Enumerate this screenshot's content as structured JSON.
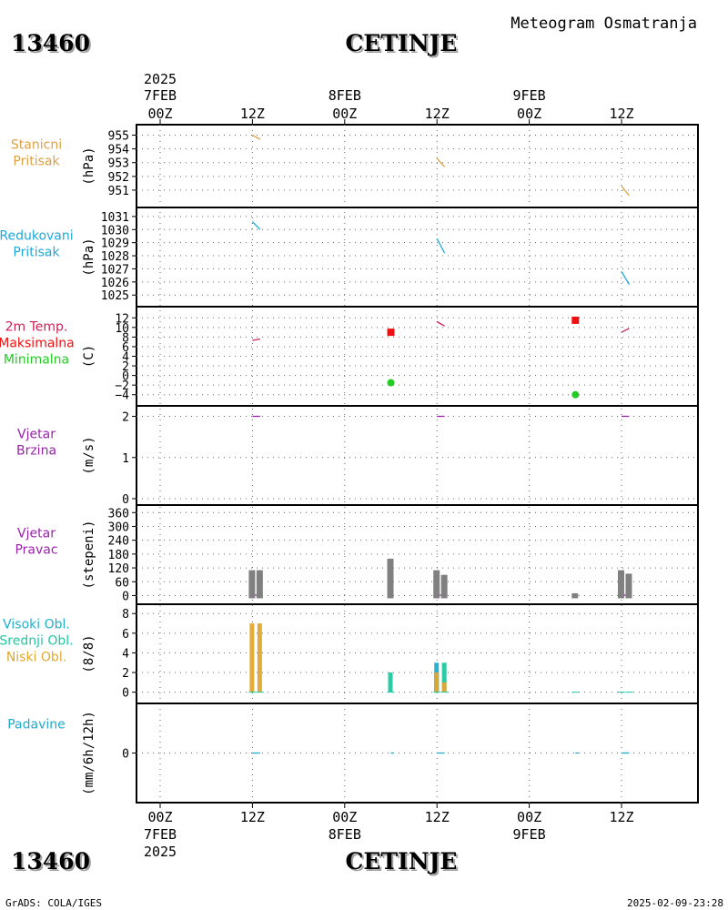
{
  "header": {
    "station_id": "13460",
    "station_name": "CETINJE",
    "product_title": "Meteogram Osmatranja",
    "year": "2025"
  },
  "footer": {
    "credit": "GrADS: COLA/IGES",
    "timestamp": "2025-02-09-23:28"
  },
  "colors": {
    "pressure_station": "#e0a040",
    "pressure_reduced": "#1fa8d8",
    "temperature": "#cc2255",
    "maximum": "#ee1111",
    "minimum": "#22cc22",
    "wind": "#9922aa",
    "direction_bar": "#808080",
    "cloud_high": "#1fb0d0",
    "cloud_mid": "#20c8a0",
    "cloud_low": "#e0a830",
    "precip": "#22aacc"
  },
  "chart_data": {
    "type": "line",
    "time_axis": {
      "start": "2025-02-07T00Z",
      "end": "2025-02-10T00Z",
      "ticks": [
        {
          "hour": 0,
          "label": "00Z",
          "date": "7FEB"
        },
        {
          "hour": 12,
          "label": "12Z",
          "date": ""
        },
        {
          "hour": 24,
          "label": "00Z",
          "date": "8FEB"
        },
        {
          "hour": 36,
          "label": "12Z",
          "date": ""
        },
        {
          "hour": 48,
          "label": "00Z",
          "date": "9FEB"
        },
        {
          "hour": 60,
          "label": "12Z",
          "date": ""
        }
      ]
    },
    "panels": [
      {
        "id": "station_pressure",
        "label_lines": [
          "Stanicni",
          "Pritisak"
        ],
        "unit": "(hPa)",
        "ylim": [
          950.2,
          955.3
        ],
        "yticks": [
          951,
          952,
          953,
          954,
          955
        ],
        "series": [
          {
            "name": "Stanicni Pritisak",
            "color_key": "pressure_station",
            "style": "line",
            "segments": [
              [
                [
                  12.0,
                  955.0
                ],
                [
                  13.0,
                  954.7
                ]
              ],
              [
                [
                  36.0,
                  953.3
                ],
                [
                  37.0,
                  952.7
                ]
              ],
              [
                [
                  60.0,
                  951.3
                ],
                [
                  61.0,
                  950.6
                ]
              ]
            ]
          }
        ]
      },
      {
        "id": "reduced_pressure",
        "label_lines": [
          "Redukovani",
          "Pritisak"
        ],
        "unit": "(hPa)",
        "ylim": [
          1024.6,
          1031.2
        ],
        "yticks": [
          1025,
          1026,
          1027,
          1028,
          1029,
          1030,
          1031
        ],
        "series": [
          {
            "name": "Redukovani Pritisak",
            "color_key": "pressure_reduced",
            "style": "line",
            "segments": [
              [
                [
                  12.0,
                  1030.6
                ],
                [
                  13.0,
                  1030.0
                ]
              ],
              [
                [
                  36.0,
                  1029.3
                ],
                [
                  37.0,
                  1028.2
                ]
              ],
              [
                [
                  60.0,
                  1026.8
                ],
                [
                  61.0,
                  1025.8
                ]
              ]
            ]
          }
        ]
      },
      {
        "id": "temperature",
        "label_lines": [
          "2m Temp.",
          "Maksimalna",
          "Minimalna"
        ],
        "unit": "(C)",
        "ylim": [
          -5,
          13
        ],
        "yticks": [
          -4,
          -2,
          0,
          2,
          4,
          6,
          8,
          10,
          12
        ],
        "series": [
          {
            "name": "2m Temp.",
            "color_key": "temperature",
            "style": "line",
            "segments": [
              [
                [
                  12.0,
                  7.3
                ],
                [
                  13.0,
                  7.6
                ]
              ],
              [
                [
                  36.0,
                  11.2
                ],
                [
                  37.0,
                  10.3
                ]
              ],
              [
                [
                  60.0,
                  9.0
                ],
                [
                  61.0,
                  9.8
                ]
              ]
            ]
          },
          {
            "name": "Maksimalna",
            "color_key": "maximum",
            "style": "square",
            "points": [
              [
                30.0,
                9.0
              ],
              [
                54.0,
                11.5
              ]
            ]
          },
          {
            "name": "Minimalna",
            "color_key": "minimum",
            "style": "dot",
            "points": [
              [
                30.0,
                -1.5
              ],
              [
                54.0,
                -4.0
              ]
            ]
          }
        ]
      },
      {
        "id": "wind_speed",
        "label_lines": [
          "Vjetar",
          "Brzina"
        ],
        "unit": "(m/s)",
        "ylim": [
          0,
          2.1
        ],
        "yticks": [
          0,
          1,
          2
        ],
        "series": [
          {
            "name": "Vjetar Brzina",
            "color_key": "wind",
            "style": "line",
            "segments": [
              [
                [
                  12.0,
                  2.0
                ],
                [
                  13.0,
                  2.0
                ]
              ],
              [
                [
                  36.0,
                  2.0
                ],
                [
                  37.0,
                  2.0
                ]
              ],
              [
                [
                  60.0,
                  2.0
                ],
                [
                  61.0,
                  2.0
                ]
              ]
            ]
          }
        ]
      },
      {
        "id": "wind_direction",
        "label_lines": [
          "Vjetar",
          "Pravac"
        ],
        "unit": "(stepeni)",
        "ylim": [
          -10,
          365
        ],
        "yticks": [
          0,
          60,
          120,
          180,
          240,
          300,
          360
        ],
        "series": [
          {
            "name": "Vjetar Pravac",
            "color_key": "direction_bar",
            "style": "bar",
            "points": [
              [
                12.0,
                110
              ],
              [
                13.0,
                110
              ],
              [
                30.0,
                160
              ],
              [
                36.0,
                110
              ],
              [
                37.0,
                90
              ],
              [
                54.0,
                10
              ],
              [
                60.0,
                110
              ],
              [
                61.0,
                95
              ]
            ]
          },
          {
            "name": "Vjetar Brzina",
            "color_key": "wind",
            "style": "line",
            "segments": [
              [
                [
                  12.0,
                  2
                ],
                [
                  13.0,
                  2
                ]
              ],
              [
                [
                  36.0,
                  2
                ],
                [
                  37.0,
                  2
                ]
              ],
              [
                [
                  60.0,
                  2
                ],
                [
                  61.0,
                  2
                ]
              ]
            ]
          }
        ]
      },
      {
        "id": "clouds",
        "label_lines": [
          "Visoki Obl.",
          "Srednji Obl.",
          "Niski Obl."
        ],
        "unit": "(8/8)",
        "ylim": [
          -0.5,
          8.3
        ],
        "yticks": [
          0,
          2,
          4,
          6,
          8
        ],
        "series": [
          {
            "name": "Visoki Obl.",
            "color_key": "cloud_high",
            "style": "bar",
            "points": [
              [
                12.0,
                0
              ],
              [
                13.0,
                0
              ],
              [
                30.0,
                0
              ],
              [
                36.0,
                3
              ],
              [
                37.0,
                0
              ],
              [
                54.0,
                0
              ],
              [
                60.0,
                0
              ],
              [
                61.0,
                0
              ]
            ]
          },
          {
            "name": "Srednji Obl.",
            "color_key": "cloud_mid",
            "style": "bar",
            "points": [
              [
                12.0,
                0
              ],
              [
                13.0,
                0
              ],
              [
                30.0,
                2
              ],
              [
                36.0,
                2
              ],
              [
                37.0,
                3
              ],
              [
                54.0,
                0
              ],
              [
                60.0,
                0
              ],
              [
                61.0,
                0
              ]
            ]
          },
          {
            "name": "Niski Obl.",
            "color_key": "cloud_low",
            "style": "bar",
            "points": [
              [
                12.0,
                7
              ],
              [
                13.0,
                7
              ],
              [
                30.0,
                0
              ],
              [
                36.0,
                2
              ],
              [
                37.0,
                1
              ],
              [
                54.0,
                0
              ],
              [
                60.0,
                0
              ],
              [
                61.0,
                0
              ]
            ]
          }
        ]
      },
      {
        "id": "precipitation",
        "label_lines": [
          "Padavine"
        ],
        "unit": "(mm/6h/12h)",
        "ylim": [
          -1.5,
          1.5
        ],
        "yticks": [
          0
        ],
        "series": [
          {
            "name": "Padavine",
            "color_key": "precip",
            "style": "line",
            "segments": [
              [
                [
                  12.0,
                  0
                ],
                [
                  13.0,
                  0
                ]
              ],
              [
                [
                  30.0,
                  0
                ],
                [
                  30.4,
                  0
                ]
              ],
              [
                [
                  36.0,
                  0
                ],
                [
                  37.0,
                  0
                ]
              ],
              [
                [
                  54.0,
                  0
                ],
                [
                  54.4,
                  0
                ]
              ],
              [
                [
                  60.0,
                  0
                ],
                [
                  61.0,
                  0
                ]
              ]
            ]
          }
        ]
      }
    ]
  }
}
